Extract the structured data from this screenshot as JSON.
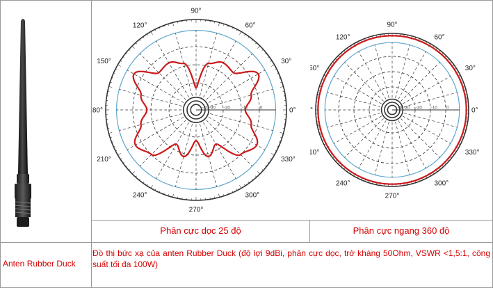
{
  "antenna": {
    "icon": "antenna-image"
  },
  "charts": {
    "angle_labels": [
      "90°",
      "60°",
      "30°",
      "0°",
      "330°",
      "300°",
      "270°",
      "240°",
      "210°",
      "180°",
      "150°",
      "120°"
    ],
    "radial_labels": [
      "-40",
      "-30",
      "-20",
      "-10",
      "0"
    ],
    "left": {
      "caption": "Phân cực dọc 25 độ"
    },
    "right": {
      "caption": "Phân cực ngang 360 độ"
    },
    "colors": {
      "pattern": "#cc1a1a",
      "reference_ring": "#5fa7cc",
      "grid": "#333333"
    }
  },
  "chart_data": [
    {
      "type": "polar",
      "caption": "Phân cực dọc 25 độ",
      "theta_deg": [
        0,
        15,
        30,
        45,
        60,
        75,
        90,
        105,
        120,
        135,
        150,
        165,
        180,
        195,
        210,
        225,
        240,
        255,
        270,
        285,
        300,
        315,
        330,
        345
      ],
      "r_relative": [
        0.56,
        0.65,
        0.82,
        0.6,
        0.62,
        0.55,
        0.25,
        0.55,
        0.62,
        0.6,
        0.82,
        0.65,
        0.56,
        0.65,
        0.8,
        0.72,
        0.45,
        0.55,
        0.35,
        0.55,
        0.45,
        0.72,
        0.8,
        0.65
      ]
    },
    {
      "type": "polar",
      "caption": "Phân cực ngang 360 độ",
      "theta_deg": [
        0,
        45,
        90,
        135,
        180,
        225,
        270,
        315
      ],
      "r_relative": [
        1.0,
        1.0,
        1.0,
        1.0,
        1.0,
        1.0,
        1.0,
        1.0
      ]
    }
  ],
  "row": {
    "name": "Anten Rubber Duck",
    "description": "Đồ thị bức xạ của anten Rubber Duck (độ lợi 9dBi, phân cực dọc, trở kháng 50Ohm, VSWR <1,5:1, công suất tối đa 100W)"
  }
}
